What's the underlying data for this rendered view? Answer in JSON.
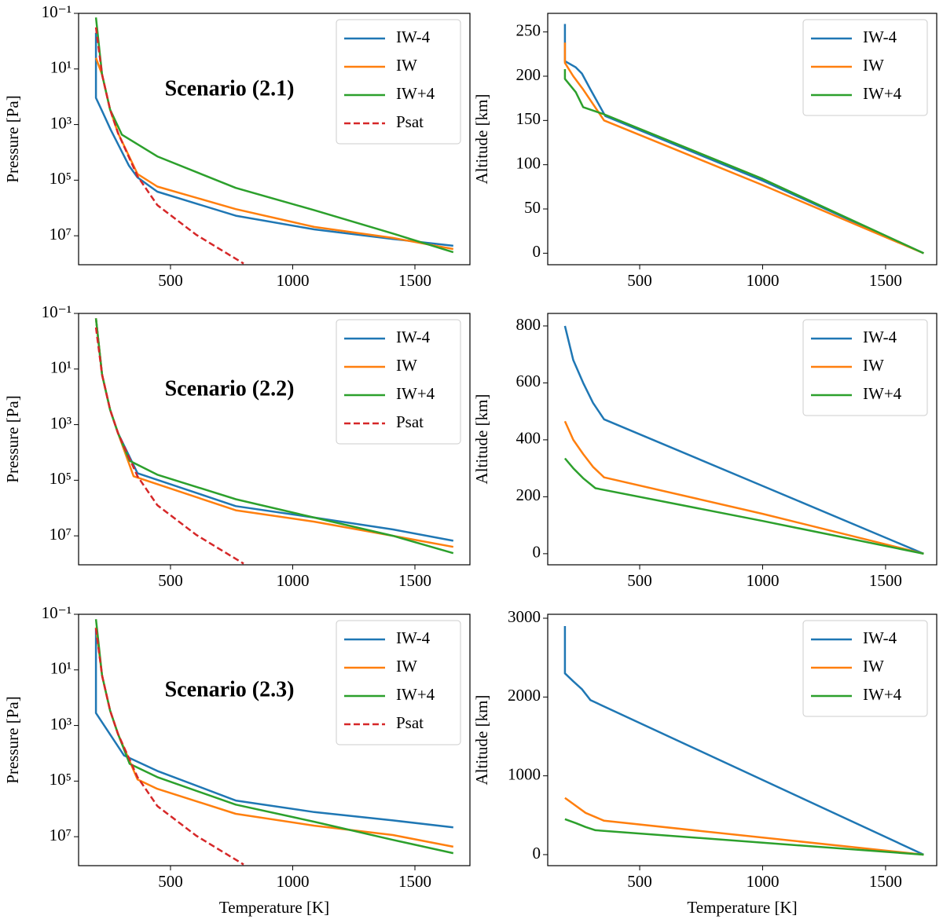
{
  "chart_data": [
    {
      "type": "line",
      "annotation": "Scenario (2.1)",
      "ylabel": "Pressure [Pa]",
      "xlim": [
        124,
        1725
      ],
      "ylim": [
        0.1,
        110000000
      ],
      "ylog": true,
      "yinvert": true,
      "xticks": [
        500,
        1000,
        1500
      ],
      "yticks": [
        {
          "value": 0.1,
          "label": "10⁻¹"
        },
        {
          "value": 10,
          "label": "10¹"
        },
        {
          "value": 1000,
          "label": "10³"
        },
        {
          "value": 100000,
          "label": "10⁵"
        },
        {
          "value": 10000000,
          "label": "10⁷"
        }
      ],
      "legend": "upper right",
      "series": [
        {
          "name": "IW-4",
          "color": "#1f77b4",
          "x": [
            195,
            195,
            225,
            255,
            285,
            330,
            365,
            446,
            767,
            1088,
            1410,
            1657
          ],
          "values": [
            0.5,
            110,
            400,
            1500,
            5000,
            30000,
            80000,
            260000,
            1900000,
            5900000,
            13000000,
            23000000
          ]
        },
        {
          "name": "IW",
          "color": "#ff7f0e",
          "x": [
            195,
            220,
            253,
            285,
            365,
            446,
            767,
            1088,
            1410,
            1657
          ],
          "values": [
            4,
            16,
            290,
            2000,
            60000,
            170000,
            1100000,
            4800000,
            12000000,
            30000000
          ]
        },
        {
          "name": "IW+4",
          "color": "#2ca02c",
          "x": [
            195,
            220,
            253,
            301,
            446,
            767,
            1088,
            1410,
            1657
          ],
          "values": [
            0.14,
            16,
            290,
            2300,
            14000,
            190000,
            1200000,
            8300000,
            39000000
          ]
        },
        {
          "name": "Psat",
          "color": "#d62728",
          "dashed": true,
          "x": [
            195,
            220,
            253,
            285,
            365,
            446,
            606,
            799
          ],
          "values": [
            0.32,
            16,
            290,
            2000,
            72000,
            790000,
            9300000,
            100000000
          ]
        }
      ]
    },
    {
      "type": "line",
      "ylabel": "Altitude [km]",
      "xlim": [
        126,
        1708
      ],
      "ylim": [
        -13,
        271
      ],
      "xticks": [
        500,
        1000,
        1500
      ],
      "yticks": [
        0,
        50,
        100,
        150,
        200,
        250
      ],
      "legend": "upper right",
      "series": [
        {
          "name": "IW-4",
          "color": "#1f77b4",
          "x": [
            196,
            196,
            215,
            240,
            265,
            300,
            330,
            360,
            1000,
            1655
          ],
          "values": [
            259,
            217,
            214,
            210,
            203,
            185,
            170,
            155,
            82,
            0
          ]
        },
        {
          "name": "IW",
          "color": "#ff7f0e",
          "x": [
            196,
            196,
            230,
            270,
            355,
            1000,
            1655
          ],
          "values": [
            238,
            215,
            200,
            185,
            150,
            77,
            0
          ]
        },
        {
          "name": "IW+4",
          "color": "#2ca02c",
          "x": [
            196,
            196,
            240,
            270,
            355,
            1000,
            1655
          ],
          "values": [
            208,
            197,
            182,
            165,
            157,
            84,
            0
          ]
        }
      ]
    },
    {
      "type": "line",
      "annotation": "Scenario (2.2)",
      "ylabel": "Pressure [Pa]",
      "xlim": [
        124,
        1725
      ],
      "ylim": [
        0.1,
        110000000
      ],
      "ylog": true,
      "yinvert": true,
      "xticks": [
        500,
        1000,
        1500
      ],
      "yticks": [
        {
          "value": 0.1,
          "label": "10⁻¹"
        },
        {
          "value": 10,
          "label": "10¹"
        },
        {
          "value": 1000,
          "label": "10³"
        },
        {
          "value": 100000,
          "label": "10⁵"
        },
        {
          "value": 10000000,
          "label": "10⁷"
        }
      ],
      "legend": "upper right",
      "series": [
        {
          "name": "IW-4",
          "color": "#1f77b4",
          "x": [
            195,
            220,
            253,
            285,
            365,
            767,
            1088,
            1410,
            1657
          ],
          "values": [
            0.15,
            16,
            290,
            2000,
            56000,
            850000,
            2200000,
            5900000,
            15000000
          ]
        },
        {
          "name": "IW",
          "color": "#ff7f0e",
          "x": [
            195,
            220,
            253,
            285,
            349,
            767,
            1088,
            1410,
            1657
          ],
          "values": [
            0.15,
            16,
            290,
            2000,
            72000,
            1200000,
            3100000,
            10000000,
            25000000
          ]
        },
        {
          "name": "IW+4",
          "color": "#2ca02c",
          "x": [
            195,
            220,
            253,
            285,
            333,
            446,
            767,
            1088,
            1410,
            1657
          ],
          "values": [
            0.15,
            16,
            290,
            2000,
            20000,
            63000,
            480000,
            2200000,
            10000000,
            42000000
          ]
        },
        {
          "name": "Psat",
          "color": "#d62728",
          "dashed": true,
          "x": [
            195,
            220,
            253,
            285,
            365,
            446,
            606,
            799
          ],
          "values": [
            0.32,
            16,
            290,
            2000,
            72000,
            790000,
            9300000,
            100000000
          ]
        }
      ]
    },
    {
      "type": "line",
      "ylabel": "Altitude [km]",
      "xlim": [
        126,
        1708
      ],
      "ylim": [
        -39,
        844
      ],
      "xticks": [
        500,
        1000,
        1500
      ],
      "yticks": [
        0,
        200,
        400,
        600,
        800
      ],
      "legend": "upper right",
      "series": [
        {
          "name": "IW-4",
          "color": "#1f77b4",
          "x": [
            196,
            230,
            270,
            310,
            355,
            1000,
            1655
          ],
          "values": [
            800,
            680,
            600,
            530,
            472,
            238,
            0
          ]
        },
        {
          "name": "IW",
          "color": "#ff7f0e",
          "x": [
            196,
            230,
            270,
            310,
            355,
            1000,
            1655
          ],
          "values": [
            465,
            400,
            350,
            305,
            268,
            140,
            0
          ]
        },
        {
          "name": "IW+4",
          "color": "#2ca02c",
          "x": [
            196,
            230,
            270,
            320,
            1000,
            1655
          ],
          "values": [
            335,
            300,
            265,
            230,
            115,
            0
          ]
        }
      ]
    },
    {
      "type": "line",
      "annotation": "Scenario (2.3)",
      "ylabel": "Pressure [Pa]",
      "xlabel": "Temperature [K]",
      "xlim": [
        124,
        1725
      ],
      "ylim": [
        0.1,
        110000000
      ],
      "ylog": true,
      "yinvert": true,
      "xticks": [
        500,
        1000,
        1500
      ],
      "yticks": [
        {
          "value": 0.1,
          "label": "10⁻¹"
        },
        {
          "value": 10,
          "label": "10¹"
        },
        {
          "value": 1000,
          "label": "10³"
        },
        {
          "value": 100000,
          "label": "10⁵"
        },
        {
          "value": 10000000,
          "label": "10⁷"
        }
      ],
      "legend": "upper right",
      "series": [
        {
          "name": "IW-4",
          "color": "#1f77b4",
          "x": [
            195,
            195,
            310,
            446,
            767,
            1088,
            1410,
            1657
          ],
          "values": [
            0.3,
            355,
            12000,
            43000,
            500000,
            1300000,
            2600000,
            4600000
          ]
        },
        {
          "name": "IW",
          "color": "#ff7f0e",
          "x": [
            195,
            220,
            253,
            285,
            365,
            446,
            767,
            1088,
            1410,
            1657
          ],
          "values": [
            0.3,
            16,
            290,
            2000,
            87000,
            190000,
            1500000,
            4000000,
            8700000,
            23000000
          ]
        },
        {
          "name": "IW+4",
          "color": "#2ca02c",
          "x": [
            195,
            220,
            253,
            285,
            333,
            446,
            767,
            1088,
            1410,
            1657
          ],
          "values": [
            0.15,
            16,
            290,
            2000,
            24000,
            72000,
            700000,
            2900000,
            13000000,
            39000000
          ]
        },
        {
          "name": "Psat",
          "color": "#d62728",
          "dashed": true,
          "x": [
            195,
            220,
            253,
            285,
            365,
            446,
            606,
            799
          ],
          "values": [
            0.32,
            16,
            290,
            2000,
            72000,
            790000,
            9300000,
            100000000
          ]
        }
      ]
    },
    {
      "type": "line",
      "ylabel": "Altitude [km]",
      "xlabel": "Temperature [K]",
      "xlim": [
        126,
        1708
      ],
      "ylim": [
        -140,
        3050
      ],
      "xticks": [
        500,
        1000,
        1500
      ],
      "yticks": [
        0,
        1000,
        2000,
        3000
      ],
      "legend": "upper right",
      "series": [
        {
          "name": "IW-4",
          "color": "#1f77b4",
          "x": [
            196,
            196,
            230,
            265,
            300,
            1655
          ],
          "values": [
            2900,
            2300,
            2200,
            2100,
            1960,
            0
          ]
        },
        {
          "name": "IW",
          "color": "#ff7f0e",
          "x": [
            196,
            240,
            280,
            355,
            1655
          ],
          "values": [
            720,
            620,
            530,
            430,
            0
          ]
        },
        {
          "name": "IW+4",
          "color": "#2ca02c",
          "x": [
            196,
            240,
            280,
            320,
            1655
          ],
          "values": [
            450,
            400,
            350,
            310,
            0
          ]
        }
      ]
    }
  ]
}
